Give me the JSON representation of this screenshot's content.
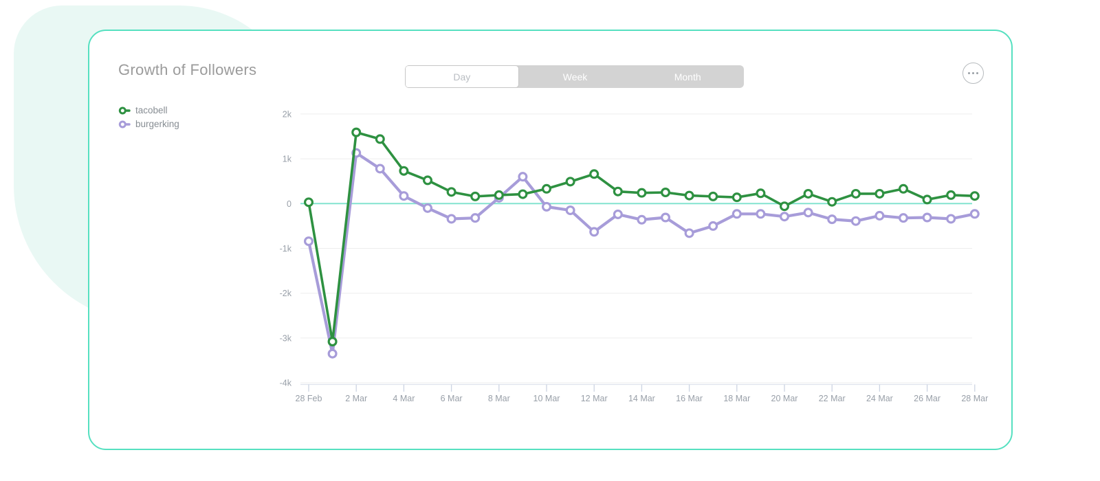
{
  "header": {
    "title": "Growth of Followers",
    "tabs": [
      {
        "label": "Day",
        "active": true
      },
      {
        "label": "Week",
        "active": false
      },
      {
        "label": "Month",
        "active": false
      }
    ],
    "more_icon": "ellipsis-menu"
  },
  "legend": [
    {
      "label": "tacobell",
      "color": "#2e9141"
    },
    {
      "label": "burgerking",
      "color": "#a79cd9"
    }
  ],
  "chart_data": {
    "type": "line",
    "title": "Growth of Followers",
    "x": [
      "28 Feb",
      "1 Mar",
      "2 Mar",
      "3 Mar",
      "4 Mar",
      "5 Mar",
      "6 Mar",
      "7 Mar",
      "8 Mar",
      "9 Mar",
      "10 Mar",
      "11 Mar",
      "12 Mar",
      "13 Mar",
      "14 Mar",
      "15 Mar",
      "16 Mar",
      "17 Mar",
      "18 Mar",
      "19 Mar",
      "20 Mar",
      "21 Mar",
      "22 Mar",
      "23 Mar",
      "24 Mar",
      "25 Mar",
      "26 Mar",
      "27 Mar",
      "28 Mar"
    ],
    "x_tick_step": 2,
    "series": [
      {
        "name": "tacobell",
        "color": "#2e9141",
        "line_width": 3.6,
        "values": [
          30,
          -3080,
          1590,
          1440,
          730,
          520,
          260,
          160,
          190,
          210,
          330,
          490,
          660,
          270,
          240,
          250,
          180,
          160,
          140,
          230,
          -60,
          220,
          40,
          220,
          220,
          330,
          90,
          190,
          170
        ]
      },
      {
        "name": "burgerking",
        "color": "#a79cd9",
        "line_width": 4.2,
        "values": [
          -840,
          -3350,
          1130,
          780,
          170,
          -100,
          -340,
          -320,
          130,
          600,
          -70,
          -150,
          -630,
          -240,
          -360,
          -310,
          -660,
          -500,
          -230,
          -230,
          -290,
          -200,
          -350,
          -390,
          -270,
          -320,
          -310,
          -340,
          -230
        ]
      }
    ],
    "ylim": [
      -4000,
      2000
    ],
    "yticks": [
      {
        "value": 2000,
        "label": "2k"
      },
      {
        "value": 1000,
        "label": "1k"
      },
      {
        "value": 0,
        "label": "0"
      },
      {
        "value": -1000,
        "label": "-1k"
      },
      {
        "value": -2000,
        "label": "-2k"
      },
      {
        "value": -3000,
        "label": "-3k"
      },
      {
        "value": -4000,
        "label": "-4k"
      }
    ],
    "grid": true,
    "legend_position": "left",
    "zero_line_color": "#83e3cf",
    "grid_color": "#ededed",
    "axis_line_color": "#dfe3ed",
    "tick_color": "#ccd4e2",
    "tick_label_color": "#989fa8",
    "marker": {
      "radius": 5.4,
      "fill": "#ffffff"
    }
  },
  "theme": {
    "card_border": "#55e0c0",
    "background_blob": "#e9f8f4",
    "title_color": "#9b9b9b",
    "tab_bg": "#d3d3d3"
  }
}
